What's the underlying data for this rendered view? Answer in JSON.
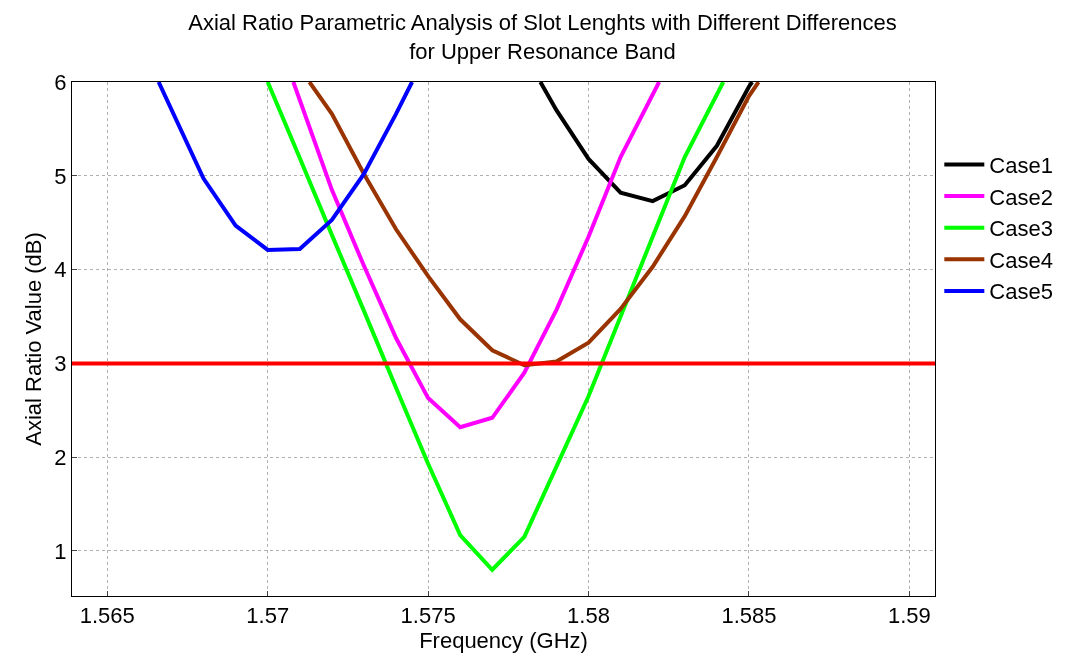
{
  "chart_data": {
    "type": "line",
    "title": "Axial Ratio Parametric Analysis of Slot Lenghts with Different Differences\nfor Upper Resonance Band",
    "xlabel": "Frequency (GHz)",
    "ylabel": "Axial Ratio Value (dB)",
    "xlim": [
      1.5639,
      1.5908
    ],
    "xticks": [
      {
        "value": 1.565,
        "label": "1.565"
      },
      {
        "value": 1.57,
        "label": "1.57"
      },
      {
        "value": 1.575,
        "label": "1.575"
      },
      {
        "value": 1.58,
        "label": "1.58"
      },
      {
        "value": 1.585,
        "label": "1.585"
      },
      {
        "value": 1.59,
        "label": "1.59"
      }
    ],
    "ylim": [
      0.52,
      6
    ],
    "yticks": [
      1,
      2,
      3,
      4,
      5,
      6
    ],
    "grid": true,
    "legend": "right",
    "line_style": "solid",
    "series": [
      {
        "name": "Case1",
        "color": "#000000",
        "x": [
          1.5785,
          1.579,
          1.58,
          1.581,
          1.582,
          1.583,
          1.584,
          1.585,
          1.5851
        ],
        "values": [
          6,
          5.7,
          5.18,
          4.82,
          4.73,
          4.9,
          5.32,
          5.95,
          6
        ]
      },
      {
        "name": "Case2",
        "color": "#ff00ff",
        "x": [
          1.5708,
          1.572,
          1.573,
          1.574,
          1.575,
          1.576,
          1.577,
          1.578,
          1.579,
          1.58,
          1.581,
          1.5822
        ],
        "values": [
          6,
          4.85,
          4.04,
          3.27,
          2.63,
          2.32,
          2.42,
          2.9,
          3.57,
          4.35,
          5.2,
          6
        ]
      },
      {
        "name": "Case3",
        "color": "#00ff00",
        "x": [
          1.57,
          1.571,
          1.572,
          1.573,
          1.574,
          1.575,
          1.576,
          1.577,
          1.578,
          1.579,
          1.58,
          1.581,
          1.582,
          1.583,
          1.5842
        ],
        "values": [
          6,
          5.19,
          4.37,
          3.56,
          2.74,
          1.93,
          1.17,
          0.8,
          1.15,
          1.9,
          2.65,
          3.5,
          4.35,
          5.2,
          6
        ]
      },
      {
        "name": "Case4",
        "color": "#993300",
        "x": [
          1.5713,
          1.572,
          1.573,
          1.574,
          1.575,
          1.576,
          1.577,
          1.578,
          1.579,
          1.58,
          1.581,
          1.582,
          1.583,
          1.584,
          1.585,
          1.5853
        ],
        "values": [
          6,
          5.66,
          5.02,
          4.43,
          3.93,
          3.47,
          3.14,
          2.98,
          3.02,
          3.22,
          3.58,
          4.03,
          4.57,
          5.2,
          5.85,
          6
        ]
      },
      {
        "name": "Case5",
        "color": "#0000ff",
        "x": [
          1.5666,
          1.568,
          1.569,
          1.57,
          1.571,
          1.572,
          1.573,
          1.574,
          1.5745
        ],
        "values": [
          6,
          4.97,
          4.47,
          4.21,
          4.22,
          4.53,
          5.02,
          5.66,
          6
        ]
      }
    ],
    "ref_lines": [
      {
        "axis": "y",
        "value": 3,
        "color": "#ff0000"
      }
    ]
  }
}
